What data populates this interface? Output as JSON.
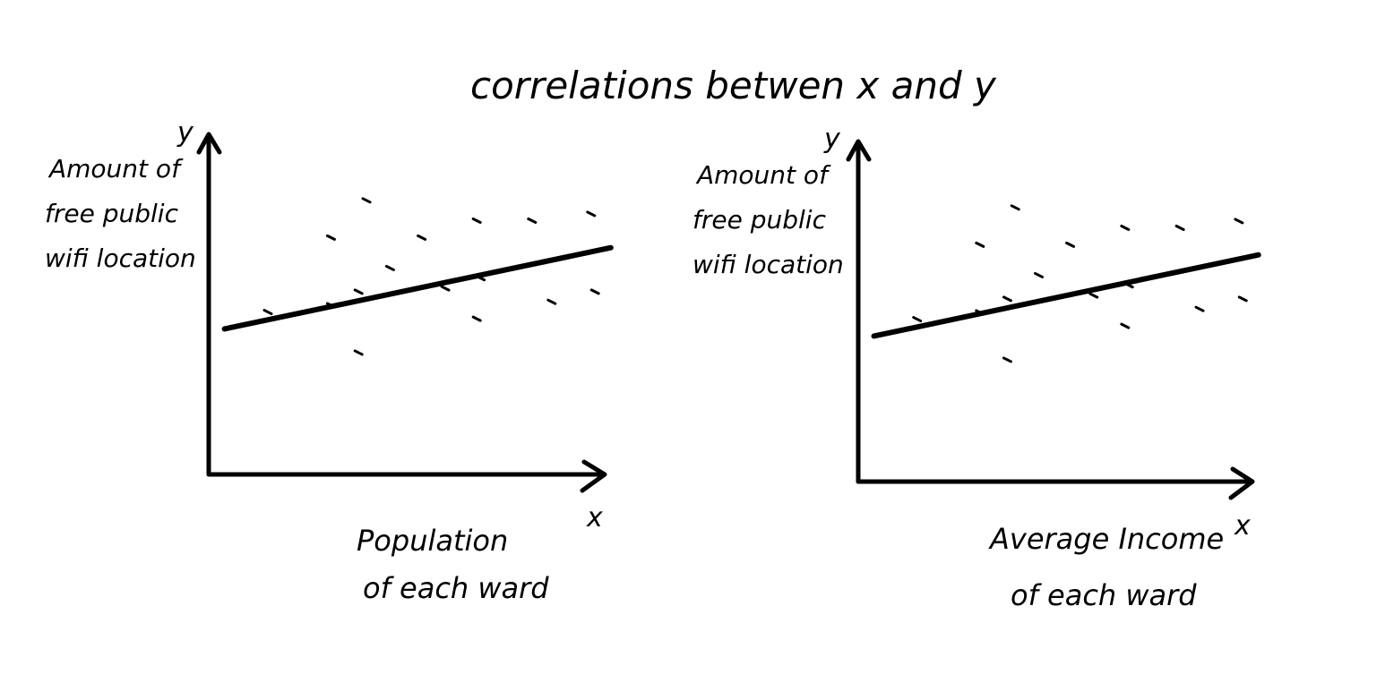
{
  "title": "correlations betwen x and y",
  "chart_data": [
    {
      "type": "scatter",
      "ylabel_lines": [
        "Amount of",
        "free public",
        "wifi location"
      ],
      "xlabel_lines": [
        "Population",
        "of each ward"
      ],
      "x_axis_letter": "x",
      "y_axis_letter": "y",
      "xlim": [
        0,
        10
      ],
      "ylim": [
        0,
        10
      ],
      "points": [
        {
          "x": 1.5,
          "y": 4.8
        },
        {
          "x": 3.1,
          "y": 7.0
        },
        {
          "x": 3.1,
          "y": 5.0
        },
        {
          "x": 3.8,
          "y": 3.6
        },
        {
          "x": 3.8,
          "y": 5.4
        },
        {
          "x": 4.0,
          "y": 8.1
        },
        {
          "x": 4.6,
          "y": 6.1
        },
        {
          "x": 5.4,
          "y": 7.0
        },
        {
          "x": 6.0,
          "y": 5.5
        },
        {
          "x": 6.8,
          "y": 7.5
        },
        {
          "x": 6.8,
          "y": 4.6
        },
        {
          "x": 6.9,
          "y": 5.8
        },
        {
          "x": 8.2,
          "y": 7.5
        },
        {
          "x": 8.7,
          "y": 5.1
        },
        {
          "x": 9.7,
          "y": 7.7
        },
        {
          "x": 9.8,
          "y": 5.4
        }
      ],
      "trend": {
        "x": [
          0.4,
          10.2
        ],
        "y": [
          4.3,
          6.7
        ]
      }
    },
    {
      "type": "scatter",
      "ylabel_lines": [
        "Amount of",
        "free public",
        "wifi location"
      ],
      "xlabel_lines": [
        "Average Income",
        "of each ward"
      ],
      "x_axis_letter": "x",
      "y_axis_letter": "y",
      "xlim": [
        0,
        10
      ],
      "ylim": [
        0,
        10
      ],
      "points": [
        {
          "x": 1.5,
          "y": 4.8
        },
        {
          "x": 3.1,
          "y": 7.0
        },
        {
          "x": 3.1,
          "y": 5.0
        },
        {
          "x": 3.8,
          "y": 3.6
        },
        {
          "x": 3.8,
          "y": 5.4
        },
        {
          "x": 4.0,
          "y": 8.1
        },
        {
          "x": 4.6,
          "y": 6.1
        },
        {
          "x": 5.4,
          "y": 7.0
        },
        {
          "x": 6.0,
          "y": 5.5
        },
        {
          "x": 6.8,
          "y": 7.5
        },
        {
          "x": 6.8,
          "y": 4.6
        },
        {
          "x": 6.9,
          "y": 5.8
        },
        {
          "x": 8.2,
          "y": 7.5
        },
        {
          "x": 8.7,
          "y": 5.1
        },
        {
          "x": 9.7,
          "y": 7.7
        },
        {
          "x": 9.8,
          "y": 5.4
        }
      ],
      "trend": {
        "x": [
          0.4,
          10.2
        ],
        "y": [
          4.3,
          6.7
        ]
      }
    }
  ]
}
